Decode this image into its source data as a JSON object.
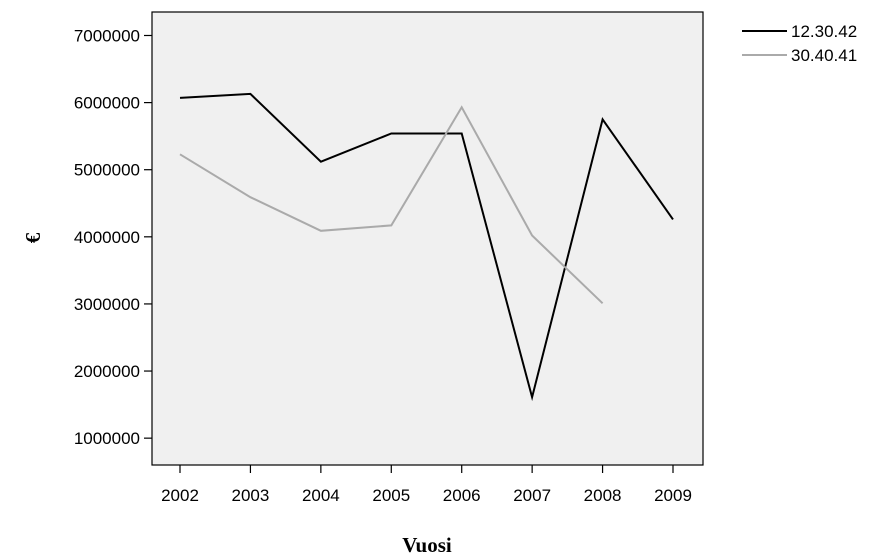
{
  "chart_data": {
    "type": "line",
    "title": "",
    "xlabel": "Vuosi",
    "ylabel": "€",
    "categories": [
      "2002",
      "2003",
      "2004",
      "2005",
      "2006",
      "2007",
      "2008",
      "2009"
    ],
    "y_ticks": [
      "1000000",
      "2000000",
      "3000000",
      "4000000",
      "5000000",
      "6000000",
      "7000000"
    ],
    "ylim": [
      600000,
      7350000
    ],
    "grid": false,
    "legend_position": "top-right",
    "plot_background": "#f0f0f0",
    "series": [
      {
        "name": "12.30.42",
        "color": "#000000",
        "values": [
          6070000,
          6130000,
          5120000,
          5540000,
          5540000,
          1610000,
          5750000,
          4260000
        ]
      },
      {
        "name": "30.40.41",
        "color": "#aaaaaa",
        "values": [
          5230000,
          4590000,
          4090000,
          4170000,
          5930000,
          4020000,
          3010000,
          null
        ]
      }
    ]
  }
}
